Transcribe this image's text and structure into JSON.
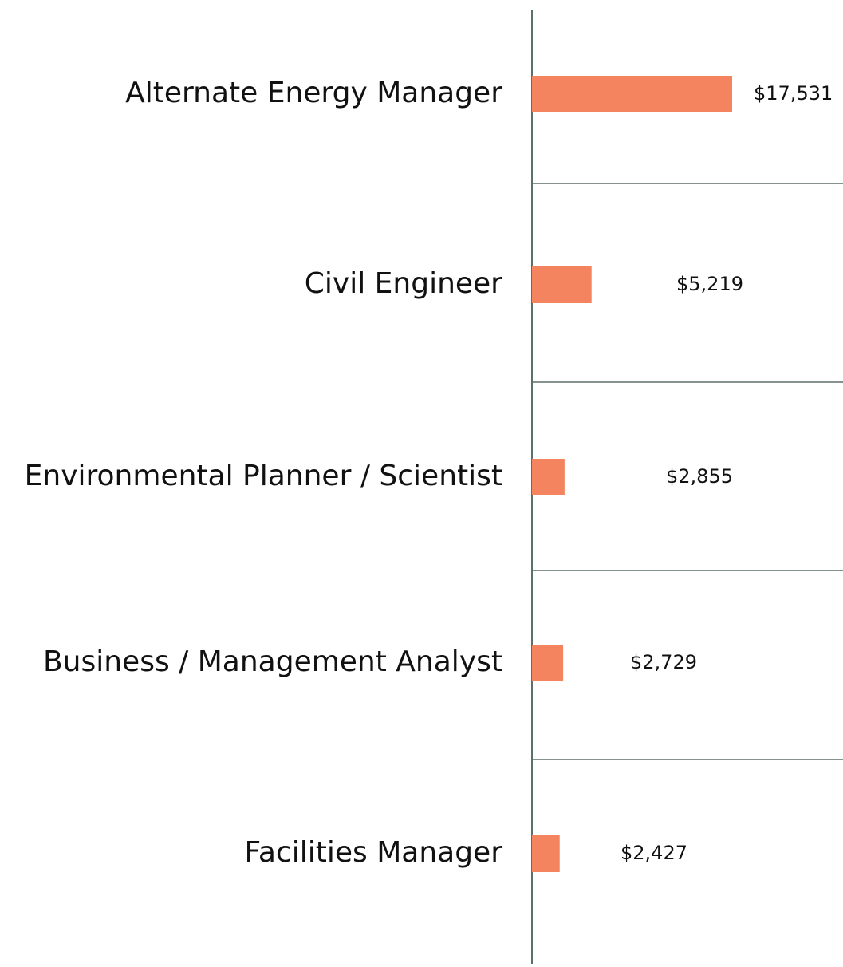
{
  "chart_data": {
    "type": "bar",
    "orientation": "horizontal",
    "categories": [
      "Alternate Energy Manager",
      "Civil Engineer",
      "Environmental Planner / Scientist",
      "Business / Management Analyst",
      "Facilities Manager"
    ],
    "values": [
      17531,
      5219,
      2855,
      2729,
      2427
    ],
    "value_labels": [
      "$17,531",
      "$5,219",
      "$2,855",
      "$2,729",
      "$2,427"
    ],
    "color": "#f4845f"
  }
}
